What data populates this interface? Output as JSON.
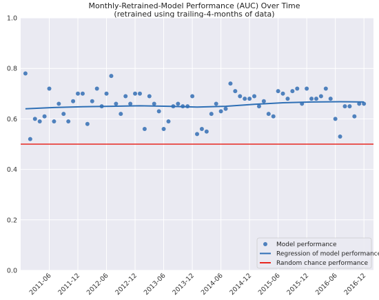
{
  "chart_data": {
    "type": "scatter",
    "title": "Monthly-Retrained-Model Performance (AUC) Over Time",
    "subtitle": "(retrained using trailing-4-months of data)",
    "xlabel": "",
    "ylabel": "",
    "ylim": [
      0.0,
      1.0
    ],
    "yticks": [
      "0.0",
      "0.2",
      "0.4",
      "0.6",
      "0.8",
      "1.0"
    ],
    "xlim": [
      "2010-12",
      "2017-02"
    ],
    "xticks": [
      "2011-06",
      "2011-12",
      "2012-06",
      "2012-12",
      "2013-06",
      "2013-12",
      "2014-06",
      "2014-12",
      "2015-06",
      "2015-12",
      "2016-06",
      "2016-12"
    ],
    "grid": true,
    "legend_position": "bottom-right",
    "series": [
      {
        "name": "Model performance",
        "kind": "points",
        "color": "#4f81bd",
        "x": [
          "2011-01",
          "2011-02",
          "2011-03",
          "2011-04",
          "2011-05",
          "2011-06",
          "2011-07",
          "2011-08",
          "2011-09",
          "2011-10",
          "2011-11",
          "2011-12",
          "2012-01",
          "2012-02",
          "2012-03",
          "2012-04",
          "2012-05",
          "2012-06",
          "2012-07",
          "2012-08",
          "2012-09",
          "2012-10",
          "2012-11",
          "2012-12",
          "2013-01",
          "2013-02",
          "2013-03",
          "2013-04",
          "2013-05",
          "2013-06",
          "2013-07",
          "2013-08",
          "2013-09",
          "2013-10",
          "2013-11",
          "2013-12",
          "2014-01",
          "2014-02",
          "2014-03",
          "2014-04",
          "2014-05",
          "2014-06",
          "2014-07",
          "2014-08",
          "2014-09",
          "2014-10",
          "2014-11",
          "2014-12",
          "2015-01",
          "2015-02",
          "2015-03",
          "2015-04",
          "2015-05",
          "2015-06",
          "2015-07",
          "2015-08",
          "2015-09",
          "2015-10",
          "2015-11",
          "2015-12",
          "2016-01",
          "2016-02",
          "2016-03",
          "2016-04",
          "2016-05",
          "2016-06",
          "2016-07",
          "2016-08",
          "2016-09",
          "2016-10",
          "2016-11",
          "2016-12"
        ],
        "y": [
          0.78,
          0.52,
          0.6,
          0.59,
          0.61,
          0.72,
          0.59,
          0.66,
          0.62,
          0.59,
          0.67,
          0.7,
          0.7,
          0.58,
          0.67,
          0.72,
          0.65,
          0.7,
          0.77,
          0.66,
          0.62,
          0.69,
          0.66,
          0.7,
          0.7,
          0.56,
          0.69,
          0.66,
          0.63,
          0.56,
          0.59,
          0.65,
          0.66,
          0.65,
          0.65,
          0.69,
          0.54,
          0.56,
          0.55,
          0.62,
          0.66,
          0.63,
          0.64,
          0.74,
          0.71,
          0.69,
          0.68,
          0.68,
          0.69,
          0.65,
          0.67,
          0.62,
          0.61,
          0.71,
          0.7,
          0.68,
          0.71,
          0.72,
          0.66,
          0.72,
          0.68,
          0.68,
          0.69,
          0.72,
          0.68,
          0.6,
          0.53,
          0.65,
          0.65,
          0.61,
          0.66,
          0.66
        ]
      },
      {
        "name": "Regression of model performance",
        "kind": "line",
        "color": "#2e6fb5",
        "x": [
          "2011-01",
          "2011-07",
          "2012-01",
          "2012-07",
          "2013-01",
          "2013-07",
          "2014-01",
          "2014-07",
          "2015-01",
          "2015-07",
          "2016-01",
          "2016-07",
          "2016-12"
        ],
        "y": [
          0.64,
          0.645,
          0.648,
          0.65,
          0.652,
          0.65,
          0.647,
          0.65,
          0.658,
          0.664,
          0.667,
          0.668,
          0.667
        ]
      },
      {
        "name": "Random chance performance",
        "kind": "hline",
        "color": "#e8261f",
        "y": 0.5
      }
    ]
  }
}
